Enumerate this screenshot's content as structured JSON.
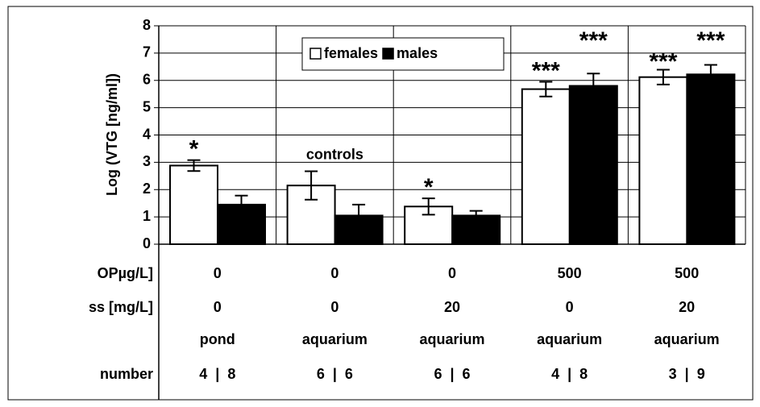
{
  "chart_data": {
    "type": "bar",
    "y_label": "Log (VTG [ng/ml])",
    "categories": [
      "pond",
      "aquarium",
      "aquarium",
      "aquarium",
      "aquarium"
    ],
    "series": [
      {
        "name": "females",
        "color": "#ffffff",
        "values": [
          2.88,
          2.15,
          1.38,
          5.68,
          6.12
        ],
        "errors": [
          0.2,
          0.52,
          0.3,
          0.27,
          0.27
        ]
      },
      {
        "name": "males",
        "color": "#000000",
        "values": [
          1.45,
          1.05,
          1.05,
          5.8,
          6.22
        ],
        "errors": [
          0.33,
          0.4,
          0.17,
          0.45,
          0.35
        ]
      }
    ],
    "ylim": [
      0,
      8
    ],
    "yticks": [
      0,
      1,
      2,
      3,
      4,
      5,
      6,
      7,
      8
    ],
    "grid": true,
    "legend": "top",
    "annotations": [
      {
        "text": "*"
      },
      {
        "text": "controls"
      },
      {
        "text": "*"
      },
      {
        "text": "***"
      },
      {
        "text": "***"
      },
      {
        "text": "***"
      },
      {
        "text": "***"
      }
    ],
    "table": [
      {
        "label": "OPµg/L]",
        "cells": [
          0,
          0,
          0,
          500,
          500
        ]
      },
      {
        "label": "ss [mg/L]",
        "cells": [
          0,
          0,
          20,
          0,
          20
        ]
      },
      {
        "label": "number",
        "cells": [
          "4  |  8",
          "6  |  6",
          "6  |  6",
          "4  |  8",
          "3  |  9"
        ]
      }
    ]
  }
}
